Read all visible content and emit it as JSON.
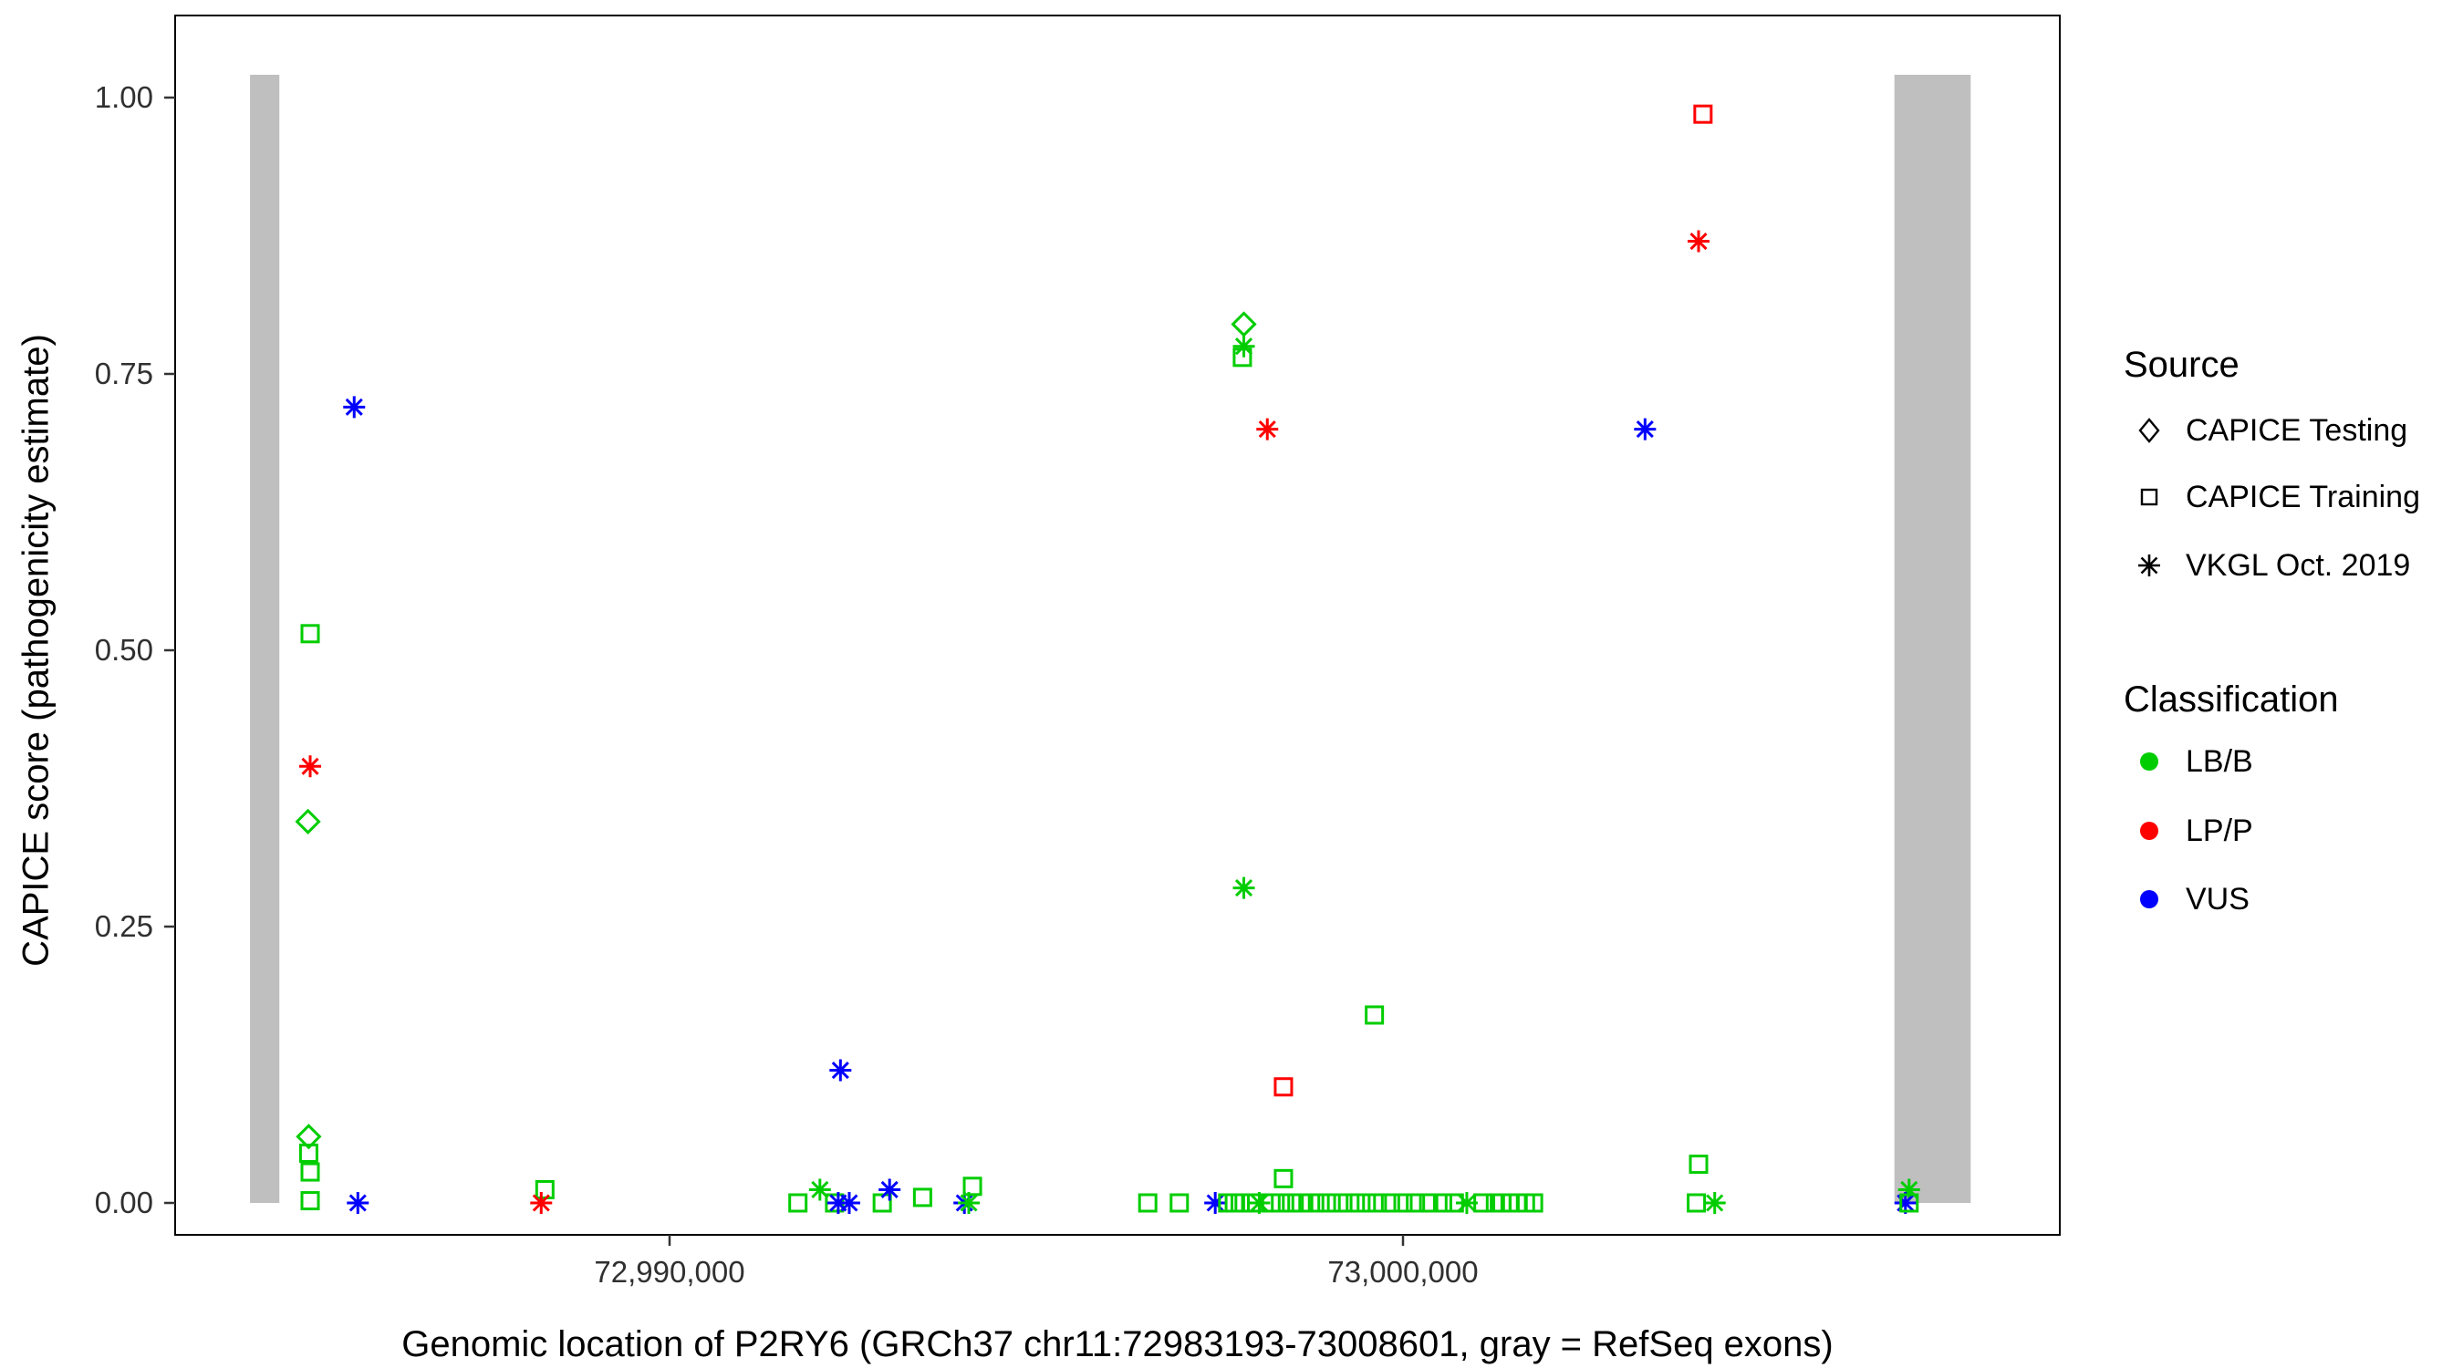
{
  "chart_data": {
    "type": "scatter",
    "title": "",
    "xlabel": "Genomic location of P2RY6 (GRCh37 chr11:72983193-73008601, gray = RefSeq exons)",
    "ylabel": "CAPICE score (pathogenicity estimate)",
    "x_domain": [
      72983259,
      73008955
    ],
    "y_domain": [
      0,
      1
    ],
    "grid": false,
    "legend_position": "right",
    "x_ticks": [
      {
        "value": 72990000,
        "label": "72,990,000"
      },
      {
        "value": 73000000,
        "label": "73,000,000"
      }
    ],
    "y_ticks": [
      {
        "value": 0.0,
        "label": "0.00"
      },
      {
        "value": 0.25,
        "label": "0.25"
      },
      {
        "value": 0.5,
        "label": "0.50"
      },
      {
        "value": 0.75,
        "label": "0.75"
      },
      {
        "value": 1.0,
        "label": "1.00"
      }
    ],
    "exon_regions_gray": [
      {
        "start": 72984280,
        "end": 72984680
      },
      {
        "start": 73006700,
        "end": 73007740
      }
    ],
    "exon_color": "#BFBFBF",
    "legend": {
      "source": {
        "title": "Source",
        "items": [
          {
            "label": "CAPICE Testing",
            "shape": "diamond"
          },
          {
            "label": "CAPICE Training",
            "shape": "square"
          },
          {
            "label": "VKGL Oct. 2019",
            "shape": "asterisk"
          }
        ]
      },
      "classification": {
        "title": "Classification",
        "items": [
          {
            "label": "LB/B",
            "color": "#00CD00"
          },
          {
            "label": "LP/P",
            "color": "#FF0000"
          },
          {
            "label": "VUS",
            "color": "#0000FF"
          }
        ]
      }
    },
    "shape_by_source": {
      "CAPICE Testing": "diamond",
      "CAPICE Training": "square",
      "VKGL Oct. 2019": "asterisk"
    },
    "color_by_class": {
      "LB/B": "#00CD00",
      "LP/P": "#FF0000",
      "VUS": "#0000FF"
    },
    "points": [
      {
        "x": 72985700,
        "y": 0.72,
        "source": "VKGL Oct. 2019",
        "cls": "VUS"
      },
      {
        "x": 72985100,
        "y": 0.515,
        "source": "CAPICE Training",
        "cls": "LB/B"
      },
      {
        "x": 72985100,
        "y": 0.395,
        "source": "VKGL Oct. 2019",
        "cls": "LP/P"
      },
      {
        "x": 72985070,
        "y": 0.345,
        "source": "CAPICE Testing",
        "cls": "LB/B"
      },
      {
        "x": 72985080,
        "y": 0.06,
        "source": "CAPICE Testing",
        "cls": "LB/B"
      },
      {
        "x": 72985080,
        "y": 0.045,
        "source": "CAPICE Training",
        "cls": "LB/B"
      },
      {
        "x": 72985100,
        "y": 0.028,
        "source": "CAPICE Training",
        "cls": "LB/B"
      },
      {
        "x": 72985100,
        "y": 0.002,
        "source": "CAPICE Training",
        "cls": "LB/B"
      },
      {
        "x": 72985750,
        "y": 0.0,
        "source": "VKGL Oct. 2019",
        "cls": "VUS"
      },
      {
        "x": 72988300,
        "y": 0.012,
        "source": "CAPICE Training",
        "cls": "LB/B"
      },
      {
        "x": 72988250,
        "y": 0.0,
        "source": "VKGL Oct. 2019",
        "cls": "LP/P"
      },
      {
        "x": 72991750,
        "y": 0.0,
        "source": "CAPICE Training",
        "cls": "LB/B"
      },
      {
        "x": 72992050,
        "y": 0.012,
        "source": "VKGL Oct. 2019",
        "cls": "LB/B"
      },
      {
        "x": 72992250,
        "y": 0.0,
        "source": "CAPICE Training",
        "cls": "LB/B"
      },
      {
        "x": 72992300,
        "y": 0.0,
        "source": "VKGL Oct. 2019",
        "cls": "VUS"
      },
      {
        "x": 72992450,
        "y": 0.0,
        "source": "VKGL Oct. 2019",
        "cls": "VUS"
      },
      {
        "x": 72992330,
        "y": 0.12,
        "source": "VKGL Oct. 2019",
        "cls": "VUS"
      },
      {
        "x": 72992900,
        "y": 0.0,
        "source": "CAPICE Training",
        "cls": "LB/B"
      },
      {
        "x": 72993000,
        "y": 0.012,
        "source": "VKGL Oct. 2019",
        "cls": "VUS"
      },
      {
        "x": 72993450,
        "y": 0.005,
        "source": "CAPICE Training",
        "cls": "LB/B"
      },
      {
        "x": 72994020,
        "y": 0.0,
        "source": "VKGL Oct. 2019",
        "cls": "VUS"
      },
      {
        "x": 72994080,
        "y": 0.0,
        "source": "VKGL Oct. 2019",
        "cls": "LB/B"
      },
      {
        "x": 72994130,
        "y": 0.015,
        "source": "CAPICE Training",
        "cls": "LB/B"
      },
      {
        "x": 72996520,
        "y": 0.0,
        "source": "CAPICE Training",
        "cls": "LB/B"
      },
      {
        "x": 72996950,
        "y": 0.0,
        "source": "CAPICE Training",
        "cls": "LB/B"
      },
      {
        "x": 72997440,
        "y": 0.0,
        "source": "VKGL Oct. 2019",
        "cls": "VUS"
      },
      {
        "x": 72997610,
        "y": 0.0,
        "source": "CAPICE Training",
        "cls": "LB/B"
      },
      {
        "x": 72997830,
        "y": 0.795,
        "source": "CAPICE Testing",
        "cls": "LB/B"
      },
      {
        "x": 72997830,
        "y": 0.775,
        "source": "VKGL Oct. 2019",
        "cls": "LB/B"
      },
      {
        "x": 72997810,
        "y": 0.765,
        "source": "CAPICE Training",
        "cls": "LB/B"
      },
      {
        "x": 72998150,
        "y": 0.7,
        "source": "VKGL Oct. 2019",
        "cls": "LP/P"
      },
      {
        "x": 72997830,
        "y": 0.285,
        "source": "VKGL Oct. 2019",
        "cls": "LB/B"
      },
      {
        "x": 72998370,
        "y": 0.105,
        "source": "CAPICE Training",
        "cls": "LP/P"
      },
      {
        "x": 72998370,
        "y": 0.022,
        "source": "CAPICE Training",
        "cls": "LB/B"
      },
      {
        "x": 72999610,
        "y": 0.17,
        "source": "CAPICE Training",
        "cls": "LB/B"
      },
      {
        "x": 72997700,
        "y": 0.0,
        "source": "CAPICE Training",
        "cls": "LB/B"
      },
      {
        "x": 72997780,
        "y": 0.0,
        "source": "CAPICE Training",
        "cls": "LB/B"
      },
      {
        "x": 72997940,
        "y": 0.0,
        "source": "CAPICE Training",
        "cls": "LB/B"
      },
      {
        "x": 72998040,
        "y": 0.0,
        "source": "VKGL Oct. 2019",
        "cls": "LB/B"
      },
      {
        "x": 72998200,
        "y": 0.0,
        "source": "CAPICE Training",
        "cls": "LB/B"
      },
      {
        "x": 72998330,
        "y": 0.0,
        "source": "CAPICE Training",
        "cls": "LB/B"
      },
      {
        "x": 72998480,
        "y": 0.0,
        "source": "CAPICE Training",
        "cls": "LB/B"
      },
      {
        "x": 72998610,
        "y": 0.0,
        "source": "CAPICE Training",
        "cls": "LB/B"
      },
      {
        "x": 72998740,
        "y": 0.0,
        "source": "CAPICE Training",
        "cls": "LB/B"
      },
      {
        "x": 72998870,
        "y": 0.0,
        "source": "CAPICE Training",
        "cls": "LB/B"
      },
      {
        "x": 72999020,
        "y": 0.0,
        "source": "CAPICE Training",
        "cls": "LB/B"
      },
      {
        "x": 72999180,
        "y": 0.0,
        "source": "CAPICE Training",
        "cls": "LB/B"
      },
      {
        "x": 72999350,
        "y": 0.0,
        "source": "CAPICE Training",
        "cls": "LB/B"
      },
      {
        "x": 72999500,
        "y": 0.0,
        "source": "CAPICE Training",
        "cls": "LB/B"
      },
      {
        "x": 72999650,
        "y": 0.0,
        "source": "CAPICE Training",
        "cls": "LB/B"
      },
      {
        "x": 72999830,
        "y": 0.0,
        "source": "CAPICE Training",
        "cls": "LB/B"
      },
      {
        "x": 73000000,
        "y": 0.0,
        "source": "CAPICE Training",
        "cls": "LB/B"
      },
      {
        "x": 73000170,
        "y": 0.0,
        "source": "CAPICE Training",
        "cls": "LB/B"
      },
      {
        "x": 73000350,
        "y": 0.0,
        "source": "CAPICE Training",
        "cls": "LB/B"
      },
      {
        "x": 73000540,
        "y": 0.0,
        "source": "CAPICE Training",
        "cls": "LB/B"
      },
      {
        "x": 73000700,
        "y": 0.0,
        "source": "CAPICE Training",
        "cls": "LB/B"
      },
      {
        "x": 73000870,
        "y": 0.0,
        "source": "VKGL Oct. 2019",
        "cls": "LB/B"
      },
      {
        "x": 73001090,
        "y": 0.0,
        "source": "CAPICE Training",
        "cls": "LB/B"
      },
      {
        "x": 73001260,
        "y": 0.0,
        "source": "CAPICE Training",
        "cls": "LB/B"
      },
      {
        "x": 73001350,
        "y": 0.0,
        "source": "CAPICE Training",
        "cls": "LB/B"
      },
      {
        "x": 73001460,
        "y": 0.0,
        "source": "CAPICE Training",
        "cls": "LB/B"
      },
      {
        "x": 73001570,
        "y": 0.0,
        "source": "CAPICE Training",
        "cls": "LB/B"
      },
      {
        "x": 73001670,
        "y": 0.0,
        "source": "CAPICE Training",
        "cls": "LB/B"
      },
      {
        "x": 73001780,
        "y": 0.0,
        "source": "CAPICE Training",
        "cls": "LB/B"
      },
      {
        "x": 73003300,
        "y": 0.7,
        "source": "VKGL Oct. 2019",
        "cls": "VUS"
      },
      {
        "x": 73004090,
        "y": 0.985,
        "source": "CAPICE Training",
        "cls": "LP/P"
      },
      {
        "x": 73004030,
        "y": 0.87,
        "source": "VKGL Oct. 2019",
        "cls": "LP/P"
      },
      {
        "x": 73004030,
        "y": 0.035,
        "source": "CAPICE Training",
        "cls": "LB/B"
      },
      {
        "x": 73004000,
        "y": 0.0,
        "source": "CAPICE Training",
        "cls": "LB/B"
      },
      {
        "x": 73004250,
        "y": 0.0,
        "source": "VKGL Oct. 2019",
        "cls": "LB/B"
      },
      {
        "x": 73006900,
        "y": 0.012,
        "source": "VKGL Oct. 2019",
        "cls": "LB/B"
      },
      {
        "x": 73006850,
        "y": 0.0,
        "source": "VKGL Oct. 2019",
        "cls": "VUS"
      },
      {
        "x": 73006900,
        "y": 0.0,
        "source": "CAPICE Training",
        "cls": "LB/B"
      }
    ]
  }
}
